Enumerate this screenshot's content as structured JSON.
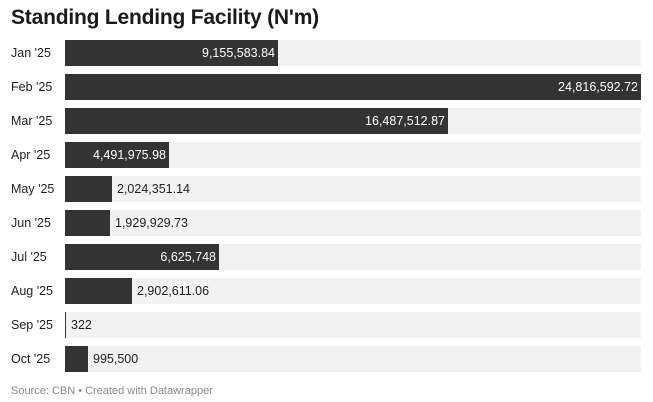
{
  "title": "Standing Lending Facility (N'm)",
  "footer": {
    "source": "Source: CBN",
    "separator": "•",
    "credit": "Created with Datawrapper"
  },
  "colors": {
    "bar": "#333333",
    "track": "#f2f2f2",
    "inside_label": "#ffffff",
    "outside_label": "#1f1f1f"
  },
  "chart_data": {
    "type": "bar",
    "orientation": "horizontal",
    "title": "Standing Lending Facility (N'm)",
    "xlabel": "",
    "ylabel": "",
    "xlim": [
      0,
      24816592.72
    ],
    "grid": false,
    "legend": "none",
    "categories": [
      "Jan '25",
      "Feb '25",
      "Mar '25",
      "Apr '25",
      "May '25",
      "Jun '25",
      "Jul '25",
      "Aug '25",
      "Sep '25",
      "Oct '25"
    ],
    "values": [
      9155583.84,
      24816592.72,
      16487512.87,
      4491975.98,
      2024351.14,
      1929929.73,
      6625748,
      2902611.06,
      322,
      995500
    ],
    "value_labels": [
      "9,155,583.84",
      "24,816,592.72",
      "16,487,512.87",
      "4,491,975.98",
      "2,024,351.14",
      "1,929,929.73",
      "6,625,748",
      "2,902,611.06",
      "322",
      "995,500"
    ]
  }
}
